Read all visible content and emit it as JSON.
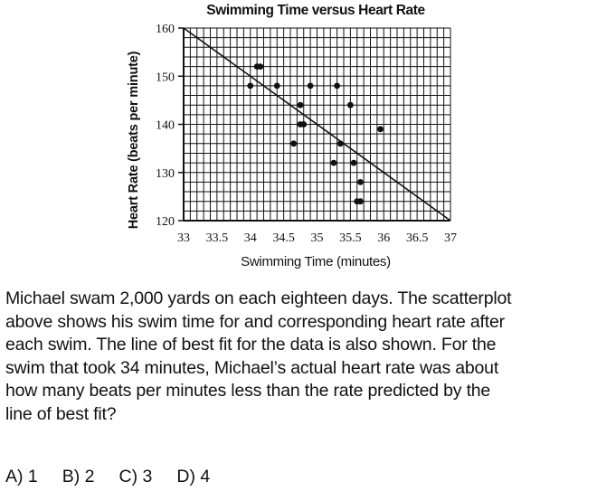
{
  "chart_data": {
    "type": "scatter",
    "title": "Swimming Time versus Heart Rate",
    "xlabel": "Swimming Time (minutes)",
    "ylabel": "Heart Rate (beats per minute)",
    "xlim": [
      33,
      37
    ],
    "ylim": [
      120,
      160
    ],
    "x_ticks": [
      33,
      33.5,
      34,
      34.5,
      35,
      35.5,
      36,
      36.5,
      37
    ],
    "x_tick_labels": [
      "33",
      "33.5",
      "34",
      "34.5",
      "35",
      "35.5",
      "36",
      "36.5",
      "37"
    ],
    "y_ticks": [
      120,
      130,
      140,
      150,
      160
    ],
    "y_tick_labels": [
      "120",
      "130",
      "140",
      "150",
      "160"
    ],
    "grid": true,
    "x_grid_step": 0.1,
    "y_grid_step": 2,
    "points": [
      {
        "x": 34.1,
        "y": 152
      },
      {
        "x": 34.15,
        "y": 152
      },
      {
        "x": 34.0,
        "y": 148
      },
      {
        "x": 34.4,
        "y": 148
      },
      {
        "x": 34.9,
        "y": 148
      },
      {
        "x": 35.3,
        "y": 148
      },
      {
        "x": 34.75,
        "y": 144
      },
      {
        "x": 35.5,
        "y": 144
      },
      {
        "x": 34.75,
        "y": 140
      },
      {
        "x": 34.8,
        "y": 140
      },
      {
        "x": 35.95,
        "y": 139
      },
      {
        "x": 34.65,
        "y": 136
      },
      {
        "x": 35.35,
        "y": 136
      },
      {
        "x": 35.25,
        "y": 132
      },
      {
        "x": 35.55,
        "y": 132
      },
      {
        "x": 35.65,
        "y": 128
      },
      {
        "x": 35.6,
        "y": 124
      },
      {
        "x": 35.65,
        "y": 124
      }
    ],
    "best_fit_line": {
      "x1": 33,
      "y1": 160,
      "x2": 37,
      "y2": 120
    }
  },
  "question": {
    "lines": [
      "Michael swam 2,000 yards on each eighteen days. The scatterplot",
      "above shows his swim time for and corresponding heart rate after",
      "each swim. The line of best fit for the data is also shown. For the",
      "swim that took 34 minutes, Michael’s actual heart rate was about",
      "how many beats per minutes less than the rate predicted by the",
      "line of best fit?"
    ]
  },
  "choices": [
    {
      "label": "A) 1"
    },
    {
      "label": "B) 2"
    },
    {
      "label": "C) 3"
    },
    {
      "label": "D) 4"
    }
  ],
  "colors": {
    "ink": "#111111",
    "background": "#ffffff"
  }
}
